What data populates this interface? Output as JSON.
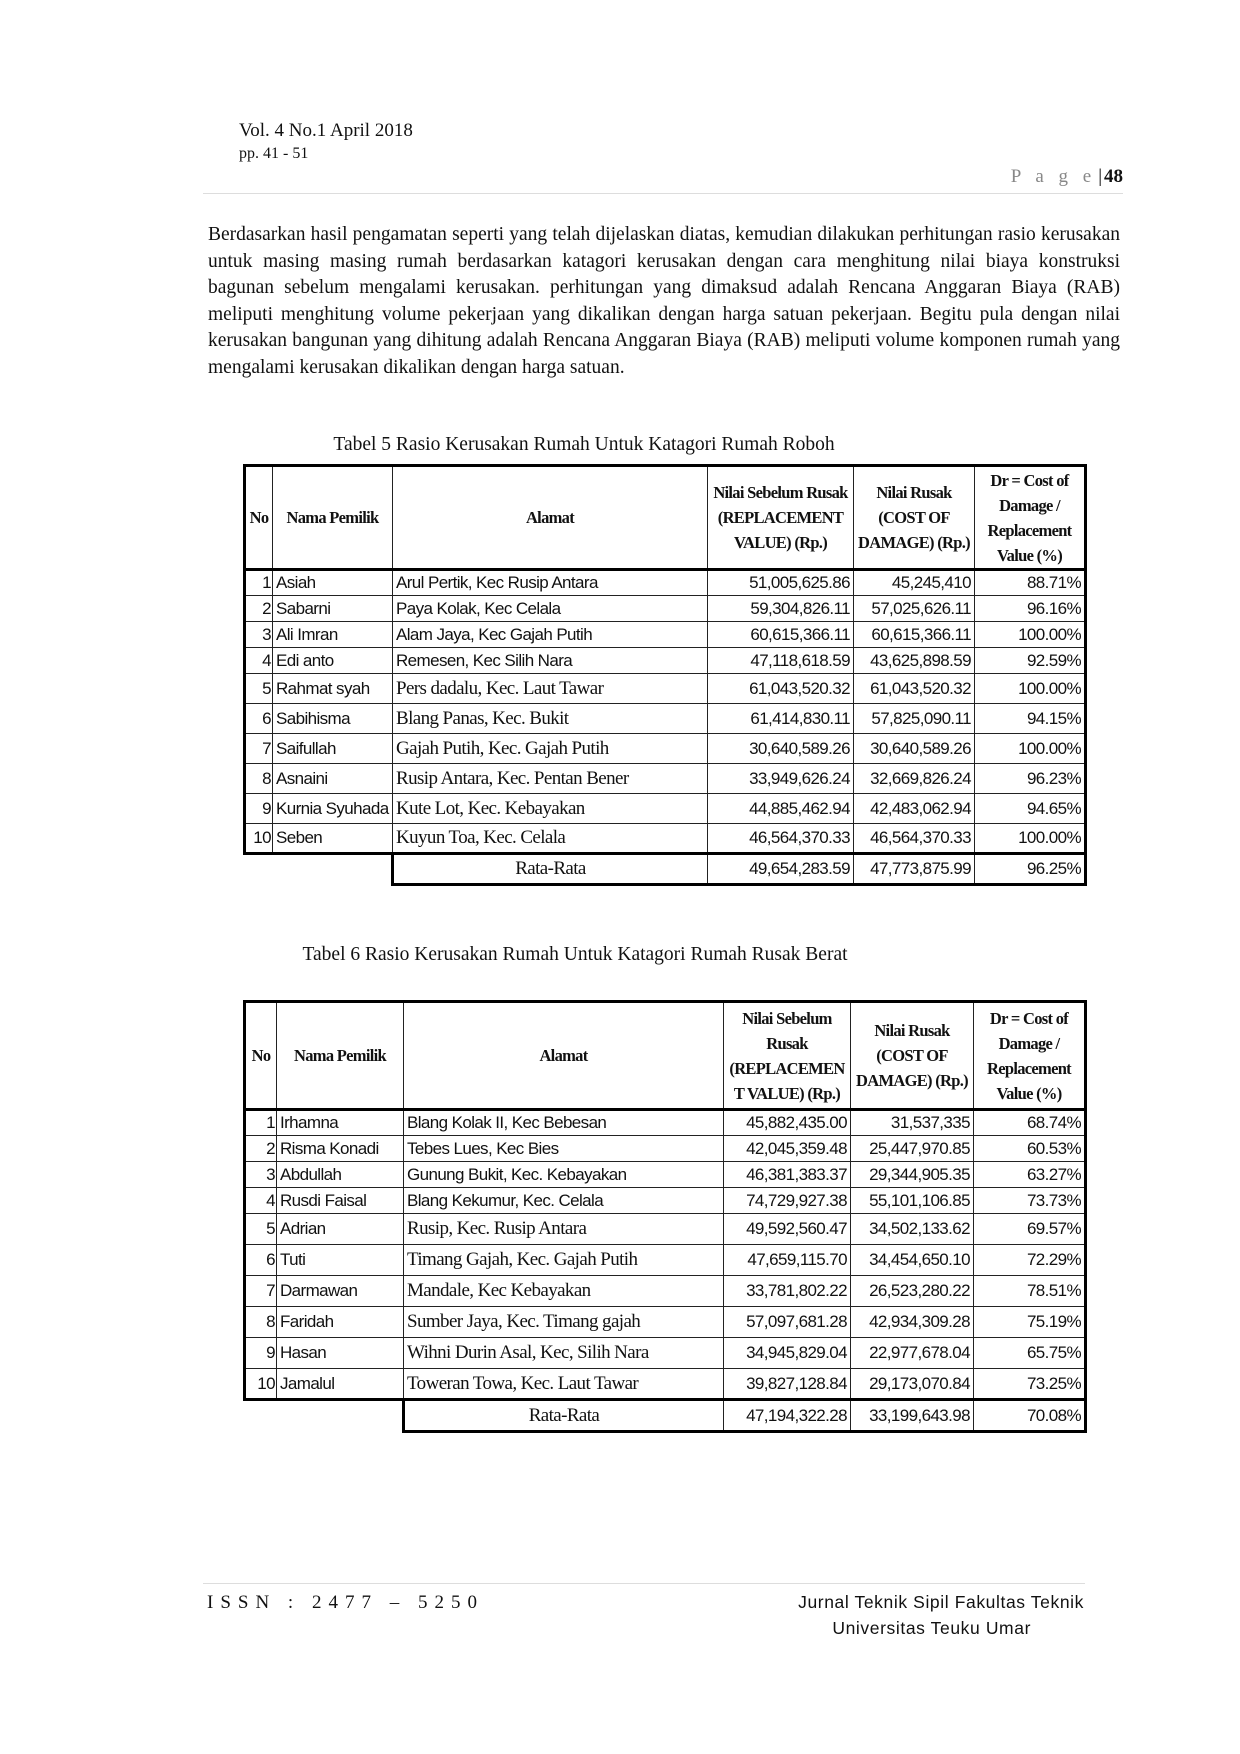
{
  "header": {
    "volume": "Vol. 4  No.1  April 2018",
    "pages": "pp. 41 - 51",
    "page_label": "P a g e",
    "page_number": "48"
  },
  "paragraph": "Berdasarkan hasil pengamatan seperti yang telah dijelaskan diatas, kemudian dilakukan perhitungan rasio kerusakan untuk masing masing rumah berdasarkan katagori kerusakan dengan cara menghitung nilai biaya konstruksi bagunan sebelum mengalami kerusakan. perhitungan yang dimaksud adalah Rencana Anggaran Biaya (RAB) meliputi menghitung volume pekerjaan yang dikalikan dengan harga satuan pekerjaan. Begitu pula dengan nilai kerusakan bangunan yang dihitung adalah Rencana Anggaran Biaya (RAB) meliputi volume komponen rumah yang mengalami kerusakan dikalikan dengan harga satuan.",
  "tables": [
    {
      "caption": "Tabel 5 Rasio Kerusakan Rumah Untuk Katagori Rumah Roboh",
      "headers": [
        "No",
        "Nama Pemilik",
        "Alamat",
        "Nilai Sebelum Rusak (REPLACEMENT VALUE) (Rp.)",
        "Nilai Rusak (COST OF DAMAGE) (Rp.)",
        "Dr = Cost of Damage / Replacement Value (%)"
      ],
      "rows": [
        [
          "1",
          "Asiah",
          "Arul Pertik, Kec Rusip Antara",
          "51,005,625.86",
          "45,245,410",
          "88.71%"
        ],
        [
          "2",
          "Sabarni",
          "Paya Kolak, Kec Celala",
          "59,304,826.11",
          "57,025,626.11",
          "96.16%"
        ],
        [
          "3",
          "Ali Imran",
          "Alam Jaya, Kec Gajah Putih",
          "60,615,366.11",
          "60,615,366.11",
          "100.00%"
        ],
        [
          "4",
          "Edi anto",
          "Remesen, Kec Silih Nara",
          "47,118,618.59",
          "43,625,898.59",
          "92.59%"
        ],
        [
          "5",
          "Rahmat syah",
          "Pers dadalu, Kec. Laut Tawar",
          "61,043,520.32",
          "61,043,520.32",
          "100.00%"
        ],
        [
          "6",
          "Sabihisma",
          "Blang Panas, Kec. Bukit",
          "61,414,830.11",
          "57,825,090.11",
          "94.15%"
        ],
        [
          "7",
          "Saifullah",
          "Gajah Putih, Kec. Gajah Putih",
          "30,640,589.26",
          "30,640,589.26",
          "100.00%"
        ],
        [
          "8",
          "Asnaini",
          "Rusip Antara, Kec. Pentan Bener",
          "33,949,626.24",
          "32,669,826.24",
          "96.23%"
        ],
        [
          "9",
          "Kurnia Syuhada",
          "Kute Lot, Kec. Kebayakan",
          "44,885,462.94",
          "42,483,062.94",
          "94.65%"
        ],
        [
          "10",
          "Seben",
          "Kuyun Toa, Kec. Celala",
          "46,564,370.33",
          "46,564,370.33",
          "100.00%"
        ]
      ],
      "average": [
        "Rata-Rata",
        "49,654,283.59",
        "47,773,875.99",
        "96.25%"
      ]
    },
    {
      "caption": "Tabel 6 Rasio Kerusakan Rumah Untuk Katagori Rumah Rusak Berat",
      "headers": [
        "No",
        "Nama Pemilik",
        "Alamat",
        "Nilai Sebelum Rusak (REPLACEMEN T VALUE) (Rp.)",
        "Nilai Rusak (COST OF DAMAGE) (Rp.)",
        "Dr = Cost of Damage / Replacement Value (%)"
      ],
      "rows": [
        [
          "1",
          "Irhamna",
          "Blang Kolak II, Kec Bebesan",
          "45,882,435.00",
          "31,537,335",
          "68.74%"
        ],
        [
          "2",
          "Risma Konadi",
          "Tebes Lues, Kec Bies",
          "42,045,359.48",
          "25,447,970.85",
          "60.53%"
        ],
        [
          "3",
          "Abdullah",
          "Gunung Bukit, Kec. Kebayakan",
          "46,381,383.37",
          "29,344,905.35",
          "63.27%"
        ],
        [
          "4",
          "Rusdi Faisal",
          "Blang Kekumur, Kec. Celala",
          "74,729,927.38",
          "55,101,106.85",
          "73.73%"
        ],
        [
          "5",
          "Adrian",
          "Rusip, Kec. Rusip Antara",
          "49,592,560.47",
          "34,502,133.62",
          "69.57%"
        ],
        [
          "6",
          "Tuti",
          "Timang Gajah, Kec. Gajah Putih",
          "47,659,115.70",
          "34,454,650.10",
          "72.29%"
        ],
        [
          "7",
          "Darmawan",
          "Mandale, Kec Kebayakan",
          "33,781,802.22",
          "26,523,280.22",
          "78.51%"
        ],
        [
          "8",
          "Faridah",
          "Sumber Jaya, Kec. Timang gajah",
          "57,097,681.28",
          "42,934,309.28",
          "75.19%"
        ],
        [
          "9",
          "Hasan",
          "Wihni Durin Asal, Kec, Silih Nara",
          "34,945,829.04",
          "22,977,678.04",
          "65.75%"
        ],
        [
          "10",
          "Jamalul",
          "Toweran Towa, Kec. Laut Tawar",
          "39,827,128.84",
          "29,173,070.84",
          "73.25%"
        ]
      ],
      "average": [
        "Rata-Rata",
        "47,194,322.28",
        "33,199,643.98",
        "70.08%"
      ]
    }
  ],
  "footer": {
    "issn": "ISSN : 2477 – 5250",
    "journal_line1": "Jurnal Teknik Sipil Fakultas Teknik",
    "journal_line2": "Universitas Teuku Umar"
  }
}
